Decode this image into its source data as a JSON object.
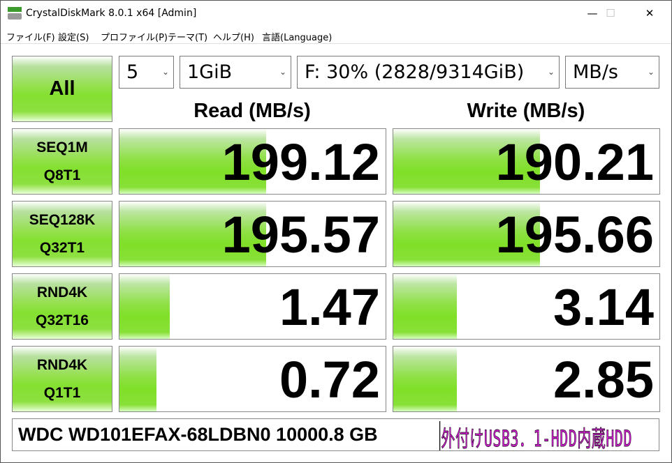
{
  "window": {
    "title": "CrystalDiskMark 8.0.1 x64 [Admin]",
    "minimize": "—",
    "maximize": "☐",
    "close": "✕"
  },
  "menu": [
    "ファイル(F)",
    "設定(S)",
    "プロファイル(P)",
    "テーマ(T)",
    "ヘルプ(H)",
    "言語(Language)"
  ],
  "controls": {
    "all_label": "All",
    "count": "5",
    "size": "1GiB",
    "drive": "F: 30% (2828/9314GiB)",
    "unit": "MB/s"
  },
  "headers": {
    "read": "Read (MB/s)",
    "write": "Write (MB/s)"
  },
  "tests": [
    {
      "line1": "SEQ1M",
      "line2": "Q8T1",
      "read": "199.12",
      "write": "190.21",
      "read_fill_pct": 55,
      "write_fill_pct": 55
    },
    {
      "line1": "SEQ128K",
      "line2": "Q32T1",
      "read": "195.57",
      "write": "195.66",
      "read_fill_pct": 55,
      "write_fill_pct": 55
    },
    {
      "line1": "RND4K",
      "line2": "Q32T16",
      "read": "1.47",
      "write": "3.14",
      "read_fill_pct": 19,
      "write_fill_pct": 24
    },
    {
      "line1": "RND4K",
      "line2": "Q1T1",
      "read": "0.72",
      "write": "2.85",
      "read_fill_pct": 14,
      "write_fill_pct": 24
    }
  ],
  "footer": {
    "drive_name": "WDC WD101EFAX-68LDBN0 10000.8 GB",
    "comment": "外付けUSB3．1-HDD内蔵HDD"
  },
  "colors": {
    "accent_green": "#84e030",
    "comment_text": "#e020e0"
  }
}
